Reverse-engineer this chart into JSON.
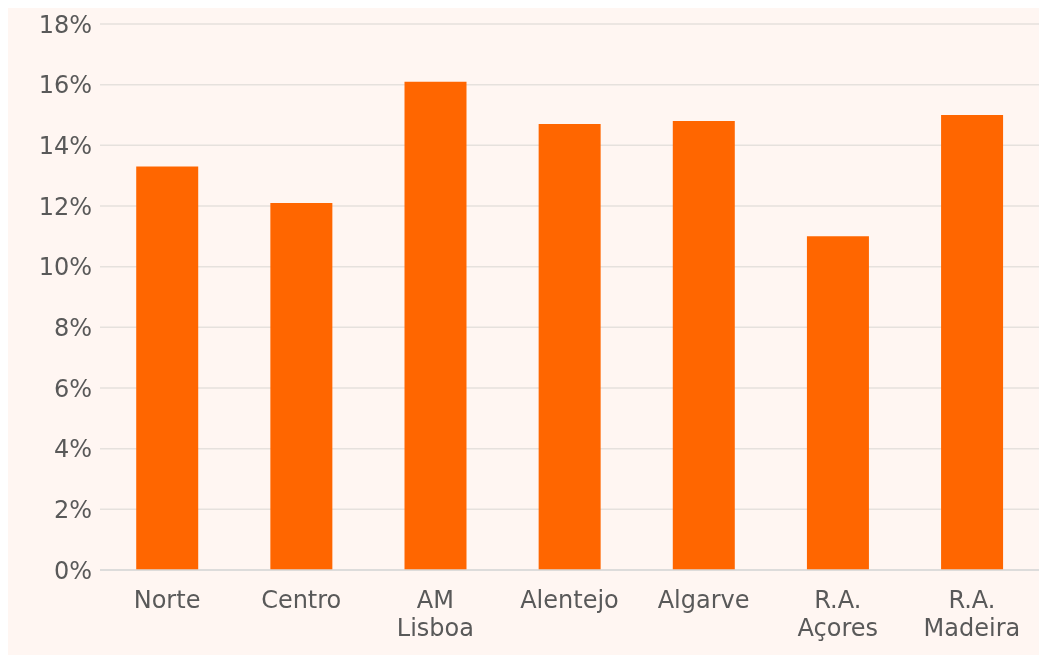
{
  "chart_data": {
    "type": "bar",
    "categories": [
      "Norte",
      "Centro",
      "AM Lisboa",
      "Alentejo",
      "Algarve",
      "R.A. Açores",
      "R.A. Madeira"
    ],
    "values": [
      13.3,
      12.1,
      16.1,
      14.7,
      14.8,
      11.0,
      15.0
    ],
    "color": "#ff6600",
    "ylim": [
      0,
      18
    ],
    "yticks": [
      {
        "value": 0,
        "label": "0%"
      },
      {
        "value": 2,
        "label": "2%"
      },
      {
        "value": 4,
        "label": "4%"
      },
      {
        "value": 6,
        "label": "6%"
      },
      {
        "value": 8,
        "label": "8%"
      },
      {
        "value": 10,
        "label": "10%"
      },
      {
        "value": 12,
        "label": "12%"
      },
      {
        "value": 14,
        "label": "14%"
      },
      {
        "value": 16,
        "label": "16%"
      },
      {
        "value": 18,
        "label": "18%"
      }
    ],
    "grid": "y"
  }
}
